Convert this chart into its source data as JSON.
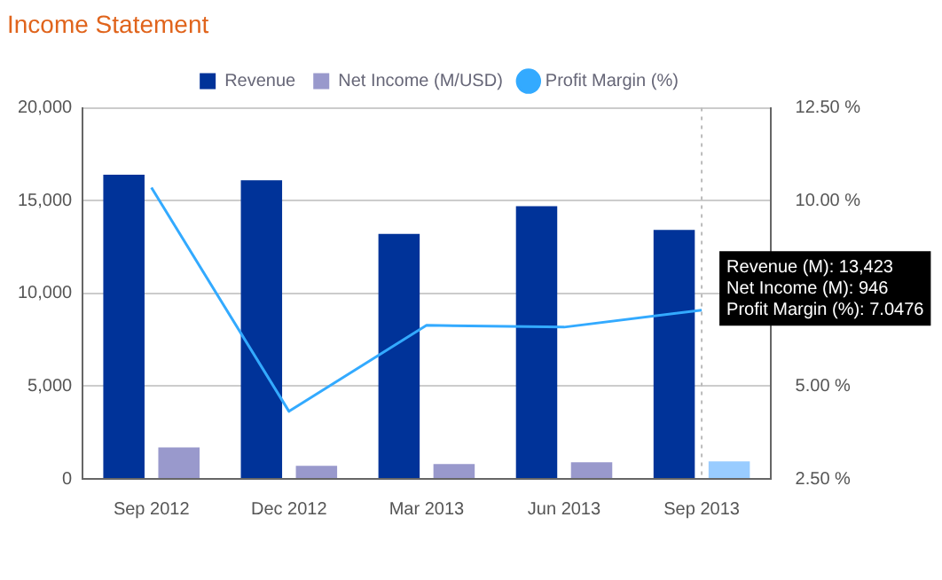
{
  "chart_data": {
    "type": "bar",
    "title": "Income Statement",
    "categories": [
      "Sep 2012",
      "Dec 2012",
      "Mar 2013",
      "Jun 2013",
      "Sep 2013"
    ],
    "series": [
      {
        "name": "Revenue",
        "color": "#003399",
        "values": [
          16400,
          16100,
          13200,
          14700,
          13423
        ]
      },
      {
        "name": "Net Income (M/USD)",
        "color": "#9999cc",
        "colors": [
          "#9999cc",
          "#9999cc",
          "#9999cc",
          "#9999cc",
          "#99ccff"
        ],
        "values": [
          1700,
          700,
          800,
          900,
          946
        ]
      },
      {
        "name": "Profit Margin (%)",
        "type": "line",
        "axis": "y2",
        "color": "#33aaff",
        "values": [
          10.35,
          4.32,
          6.64,
          6.59,
          7.0476
        ]
      }
    ],
    "ylim": [
      0,
      20000
    ],
    "yticks": [
      {
        "value": 0,
        "label": "0"
      },
      {
        "value": 5000,
        "label": "5,000"
      },
      {
        "value": 10000,
        "label": "10,000"
      },
      {
        "value": 15000,
        "label": "15,000"
      },
      {
        "value": 20000,
        "label": "20,000"
      }
    ],
    "y2lim": [
      2.5,
      12.5
    ],
    "y2ticks": [
      {
        "value": 2.5,
        "label": "2.50 %"
      },
      {
        "value": 5,
        "label": "5.00 %"
      },
      {
        "value": 7.5,
        "label": null
      },
      {
        "value": 10,
        "label": "10.00 %"
      },
      {
        "value": 12.5,
        "label": "12.50 %"
      }
    ],
    "ref_lines": [
      {
        "axis": "x",
        "value": "Sep 2013",
        "color": "#bbbbbb",
        "line_style": "dotted"
      }
    ],
    "annotations": [
      {
        "text": "Revenue (M): 13,423\nNet Income (M): 946\nProfit Margin (%): 7.0476",
        "x": "Sep 2013",
        "y": 13423
      }
    ],
    "grid": "y",
    "legend": "top",
    "marker": "none"
  }
}
